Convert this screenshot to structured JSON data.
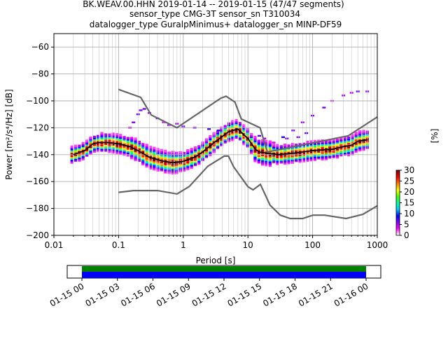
{
  "header": {
    "line1": "BK.WEAV.00.HHN   2019-01-14 -- 2019-01-15  (47/47 segments)",
    "line2": "sensor_type CMG-3T sensor_sn T310034",
    "line3": "datalogger_type GuralpMinimus+ datalogger_sn MINP-DF59"
  },
  "chart_data": [
    {
      "type": "heatmap",
      "title": "BK.WEAV.00.HHN   2019-01-14 -- 2019-01-15  (47/47 segments)",
      "xlabel": "Period [s]",
      "ylabel": "Power [m²/s⁴/Hz] [dB]",
      "x_scale": "log",
      "xlim": [
        0.01,
        1000
      ],
      "ylim": [
        -200,
        -50
      ],
      "xticks": [
        {
          "value": 0.01,
          "label": "0.01"
        },
        {
          "value": 0.1,
          "label": "0.1"
        },
        {
          "value": 1,
          "label": "1"
        },
        {
          "value": 10,
          "label": "10"
        },
        {
          "value": 100,
          "label": "100"
        },
        {
          "value": 1000,
          "label": "1000"
        }
      ],
      "yticks": [
        -200,
        -180,
        -160,
        -140,
        -120,
        -100,
        -80,
        -60
      ],
      "grid": true,
      "colorbar": {
        "label": "[%]",
        "min": 0,
        "max": 30,
        "ticks": [
          0,
          5,
          10,
          15,
          20,
          25,
          30
        ],
        "colors": [
          "#ffffff",
          "#ff00ff",
          "#8000ff",
          "#0000ff",
          "#00c8ff",
          "#00ffa0",
          "#40ff00",
          "#ffff00",
          "#ff8000",
          "#ff0000",
          "#800000"
        ]
      },
      "mode_curve": {
        "name": "mode",
        "color": "#000000",
        "x": [
          0.02,
          0.03,
          0.04,
          0.05,
          0.07,
          0.1,
          0.15,
          0.2,
          0.3,
          0.5,
          0.7,
          1.0,
          1.5,
          2,
          3,
          5,
          7,
          10,
          13,
          15,
          20,
          30,
          50,
          100,
          200,
          300,
          400,
          500,
          700
        ],
        "y": [
          -140,
          -137,
          -132,
          -131,
          -131,
          -132,
          -134,
          -137,
          -142,
          -145,
          -146,
          -145,
          -142,
          -138,
          -131,
          -123,
          -121,
          -128,
          -136,
          -138,
          -139,
          -140,
          -139,
          -137,
          -136,
          -134,
          -133,
          -130,
          -129
        ]
      },
      "noise_models": [
        {
          "name": "high-noise",
          "color": "#666666",
          "x": [
            0.1,
            0.22,
            0.32,
            0.8,
            3.8,
            4.6,
            6.3,
            7.9,
            15.4,
            20,
            354.8,
            1000
          ],
          "y": [
            -91.5,
            -97.4,
            -110.5,
            -120,
            -98,
            -96.5,
            -101,
            -113.5,
            -120,
            -138,
            -126,
            -112
          ]
        },
        {
          "name": "low-noise",
          "color": "#666666",
          "x": [
            0.1,
            0.17,
            0.4,
            0.8,
            1.24,
            2.4,
            4.3,
            5.0,
            6.0,
            10.0,
            12.0,
            15.6,
            21.9,
            31.6,
            45.0,
            70.0,
            101.0,
            154.0,
            328.0,
            600.0,
            1000.0
          ],
          "y": [
            -168,
            -166.7,
            -166.7,
            -169.2,
            -163.7,
            -148.6,
            -141.1,
            -141.1,
            -149,
            -163.8,
            -166.2,
            -162.1,
            -177.5,
            -185,
            -187.5,
            -187.5,
            -185,
            -185,
            -187.5,
            -184.4,
            -178
          ]
        }
      ]
    },
    {
      "type": "timeline",
      "xticks": [
        "01-15 00",
        "01-15 03",
        "01-15 06",
        "01-15 09",
        "01-15 12",
        "01-15 15",
        "01-15 18",
        "01-15 21",
        "01-16 00"
      ],
      "bands": [
        {
          "name": "data",
          "color": "#0000ff",
          "start": "01-15 00",
          "end": "01-16 00"
        },
        {
          "name": "psd",
          "color": "#008000",
          "start": "01-15 00",
          "end": "01-16 00"
        }
      ]
    }
  ]
}
